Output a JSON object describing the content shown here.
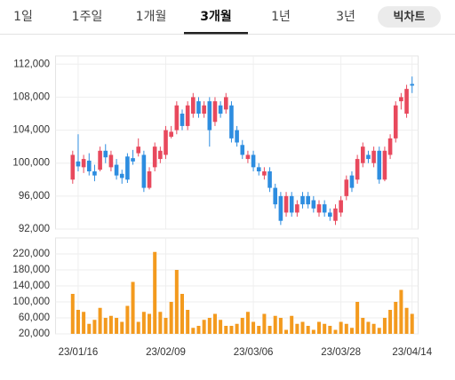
{
  "tabs": [
    "1일",
    "1주일",
    "1개월",
    "3개월",
    "1년",
    "3년"
  ],
  "active_tab": 3,
  "button": "빅차트",
  "chart_data": [
    {
      "type": "candlestick",
      "up_color": "#e8495d",
      "down_color": "#2d8de0",
      "ylim": [
        92000,
        113000
      ],
      "yticks": [
        {
          "value": 92000,
          "label": "92,000"
        },
        {
          "value": 96000,
          "label": "96,000"
        },
        {
          "value": 100000,
          "label": "100,000"
        },
        {
          "value": 104000,
          "label": "104,000"
        },
        {
          "value": 108000,
          "label": "108,000"
        },
        {
          "value": 112000,
          "label": "112,000"
        }
      ],
      "grid": true,
      "open": [
        98000,
        100200,
        99500,
        100300,
        99000,
        99200,
        101500,
        99500,
        99800,
        98700,
        100800,
        100600,
        101200,
        101000,
        97000,
        99500,
        100500,
        101000,
        103200,
        104000,
        106000,
        104500,
        106000,
        107500,
        106000,
        107500,
        105000,
        107000,
        106500,
        107000,
        104000,
        102200,
        100500,
        101000,
        99500,
        98500,
        99000,
        97000,
        96000,
        94000,
        96000,
        94000,
        96000,
        96000,
        95500,
        94000,
        95000,
        94000,
        93000,
        94000,
        96000,
        98500,
        98000,
        100000,
        101000,
        100000,
        101500,
        98000,
        101000,
        103000,
        107500,
        106000,
        109600
      ],
      "high": [
        101500,
        103500,
        101000,
        101200,
        99800,
        102000,
        102300,
        101500,
        100500,
        99200,
        101200,
        101600,
        103000,
        101500,
        99500,
        102500,
        102000,
        104500,
        104500,
        107500,
        106500,
        107500,
        108500,
        108000,
        107500,
        108000,
        108000,
        107500,
        108500,
        107500,
        104500,
        102800,
        101500,
        101500,
        100000,
        99500,
        99500,
        97500,
        96500,
        96500,
        96500,
        95500,
        96500,
        96500,
        96000,
        95500,
        95500,
        94500,
        95000,
        96000,
        98500,
        99000,
        101000,
        102500,
        101500,
        102000,
        102000,
        102000,
        103500,
        107500,
        108500,
        109500,
        110500
      ],
      "low": [
        97500,
        99000,
        98800,
        98500,
        97800,
        99000,
        100000,
        99000,
        98000,
        97500,
        97600,
        99800,
        100800,
        96500,
        96800,
        99000,
        100000,
        100500,
        103000,
        103500,
        104000,
        104000,
        105500,
        105500,
        105500,
        102000,
        104500,
        105500,
        106000,
        102500,
        102000,
        100500,
        100000,
        99000,
        98500,
        98000,
        96500,
        94500,
        92500,
        93500,
        93500,
        93500,
        94500,
        94500,
        94000,
        93500,
        93500,
        93000,
        92500,
        93500,
        95500,
        96500,
        97500,
        99500,
        100000,
        99500,
        97500,
        97800,
        100500,
        102500,
        106500,
        105500,
        108500
      ],
      "close": [
        101000,
        99600,
        100500,
        99000,
        98500,
        101500,
        100700,
        101000,
        98500,
        98200,
        98000,
        100200,
        102000,
        97000,
        99000,
        102000,
        101500,
        104000,
        103800,
        107000,
        104500,
        107000,
        108000,
        106000,
        107000,
        104000,
        107500,
        106000,
        108000,
        103000,
        102500,
        101000,
        101000,
        99500,
        99000,
        99000,
        97000,
        95000,
        93000,
        96000,
        94000,
        95000,
        95000,
        95000,
        94500,
        95000,
        94000,
        93500,
        94500,
        95500,
        98000,
        97000,
        100500,
        102000,
        100500,
        101500,
        98000,
        101500,
        103000,
        107000,
        108000,
        109000,
        109400
      ]
    },
    {
      "type": "bar",
      "color": "#f39a1e",
      "categories": [
        null,
        "23/01/16",
        null,
        null,
        null,
        null,
        null,
        null,
        null,
        null,
        null,
        null,
        null,
        null,
        null,
        null,
        null,
        "23/02/09",
        null,
        null,
        null,
        null,
        null,
        null,
        null,
        null,
        null,
        null,
        null,
        null,
        null,
        null,
        null,
        "23/03/06",
        null,
        null,
        null,
        null,
        null,
        null,
        null,
        null,
        null,
        null,
        null,
        null,
        null,
        null,
        null,
        "23/03/28",
        null,
        null,
        null,
        null,
        null,
        null,
        null,
        null,
        null,
        null,
        null,
        null,
        "23/04/14"
      ],
      "values": [
        120000,
        80000,
        75000,
        45000,
        55000,
        85000,
        60000,
        65000,
        60000,
        50000,
        90000,
        150000,
        50000,
        75000,
        70000,
        225000,
        75000,
        60000,
        100000,
        180000,
        120000,
        80000,
        35000,
        40000,
        55000,
        60000,
        70000,
        55000,
        40000,
        40000,
        45000,
        60000,
        75000,
        50000,
        40000,
        70000,
        40000,
        65000,
        60000,
        30000,
        65000,
        45000,
        50000,
        40000,
        30000,
        50000,
        45000,
        40000,
        30000,
        50000,
        45000,
        35000,
        100000,
        60000,
        50000,
        45000,
        35000,
        60000,
        80000,
        100000,
        130000,
        85000,
        70000
      ],
      "ylim": [
        20000,
        260000
      ],
      "yticks": [
        {
          "value": 20000,
          "label": "20,000"
        },
        {
          "value": 60000,
          "label": "60,000"
        },
        {
          "value": 100000,
          "label": "100,000"
        },
        {
          "value": 140000,
          "label": "140,000"
        },
        {
          "value": 180000,
          "label": "180,000"
        },
        {
          "value": 220000,
          "label": "220,000"
        }
      ],
      "grid": true
    }
  ]
}
